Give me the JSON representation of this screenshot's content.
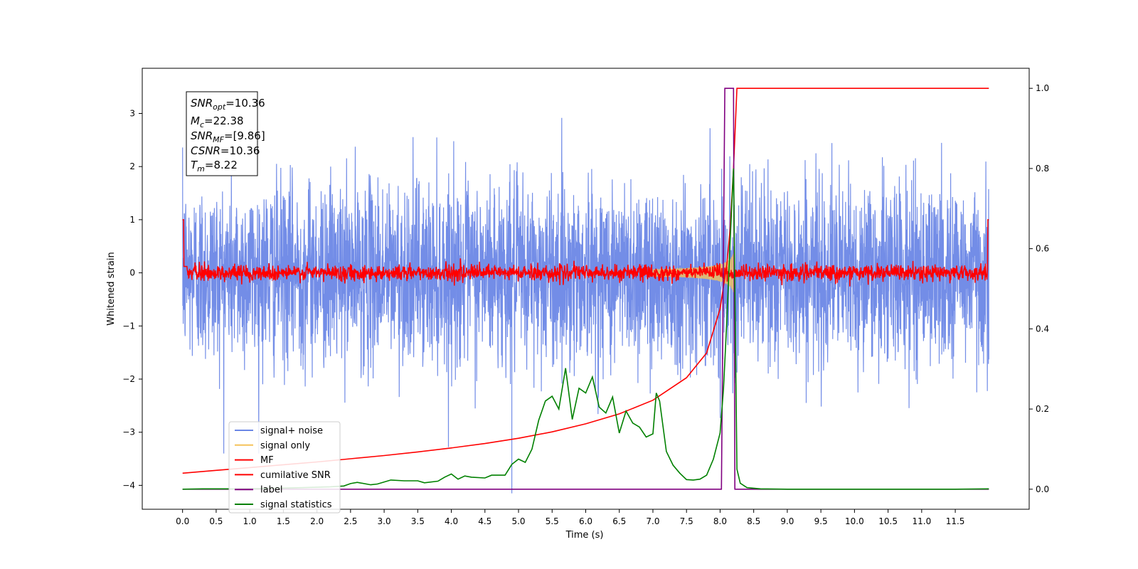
{
  "chart_data": {
    "type": "line",
    "xlabel": "Time (s)",
    "ylabel": "Whitened strain",
    "xlim": [
      -0.6,
      12.6
    ],
    "ylim": [
      -4.45,
      3.85
    ],
    "ylim_right": [
      -0.05,
      1.05
    ],
    "xticks": [
      "0.0",
      "0.5",
      "1.0",
      "1.5",
      "2.0",
      "2.5",
      "3.0",
      "3.5",
      "4.0",
      "4.5",
      "5.0",
      "5.5",
      "6.0",
      "6.5",
      "7.0",
      "7.5",
      "8.0",
      "8.5",
      "9.0",
      "9.5",
      "10.0",
      "10.5",
      "11.0",
      "11.5"
    ],
    "yticks_left": [
      "3",
      "2",
      "1",
      "0",
      "−1",
      "−2",
      "−3",
      "−4"
    ],
    "yticks_right": [
      "1.0",
      "0.8",
      "0.6",
      "0.4",
      "0.2",
      "0.0"
    ],
    "grid": false,
    "legend_position": "lower-left",
    "info_box": {
      "snr_opt": {
        "name": "SNR",
        "sub": "opt",
        "value": "=10.36"
      },
      "mc": {
        "name": "M",
        "sub": "c",
        "value": "=22.38"
      },
      "snr_mf": {
        "name": "SNR",
        "sub": "MF",
        "value": "=[9.86]"
      },
      "csnr": {
        "name": "CSNR",
        "sub": "",
        "value": "=10.36"
      },
      "tm": {
        "name": "T",
        "sub": "m",
        "value": "=8.22"
      }
    },
    "series": [
      {
        "name": "signal+ noise",
        "color": "#6b87e6",
        "axis": "left",
        "description": "white noise, std ~0.85 whitened strain, 0.0-12.0 s, peaks to about ±3.4"
      },
      {
        "name": "signal only",
        "color": "#f5c25a",
        "axis": "left",
        "description": "chirp growing toward merger at 8.22 s, amplitude ~0.45 at peak"
      },
      {
        "name": "MF",
        "color": "#ff0000",
        "axis": "left",
        "description": "matched-filter output, std ~0.08 around 0, spike to 1.0 at 0.0 and 12.0 s"
      },
      {
        "name": "cumilative SNR",
        "color": "#ff0000",
        "axis": "right",
        "x": [
          0.0,
          0.5,
          1.0,
          1.5,
          2.0,
          2.5,
          3.0,
          3.5,
          4.0,
          4.5,
          5.0,
          5.5,
          6.0,
          6.5,
          7.0,
          7.5,
          7.8,
          8.0,
          8.1,
          8.15,
          8.2,
          8.25,
          9.0,
          10.0,
          11.0,
          12.0
        ],
        "y": [
          0.04,
          0.047,
          0.054,
          0.061,
          0.068,
          0.076,
          0.084,
          0.093,
          0.103,
          0.114,
          0.127,
          0.143,
          0.163,
          0.188,
          0.222,
          0.278,
          0.34,
          0.45,
          0.56,
          0.65,
          0.8,
          1.0,
          1.0,
          1.0,
          1.0,
          1.0
        ]
      },
      {
        "name": "label",
        "color": "#800080",
        "axis": "right",
        "x": [
          0.0,
          8.02,
          8.07,
          8.2,
          8.22,
          12.0
        ],
        "y": [
          0.0,
          0.0,
          1.0,
          1.0,
          0.0,
          0.0
        ]
      },
      {
        "name": "signal statistics",
        "color": "#008000",
        "axis": "right",
        "x": [
          0.0,
          0.3,
          0.8,
          1.3,
          1.8,
          2.2,
          2.4,
          2.5,
          2.6,
          2.8,
          2.9,
          3.1,
          3.3,
          3.5,
          3.6,
          3.8,
          3.9,
          4.0,
          4.1,
          4.2,
          4.3,
          4.5,
          4.6,
          4.8,
          4.9,
          5.0,
          5.1,
          5.2,
          5.3,
          5.4,
          5.5,
          5.6,
          5.7,
          5.8,
          5.9,
          6.0,
          6.1,
          6.2,
          6.3,
          6.4,
          6.5,
          6.6,
          6.7,
          6.8,
          6.9,
          7.0,
          7.05,
          7.1,
          7.2,
          7.3,
          7.4,
          7.5,
          7.6,
          7.7,
          7.8,
          7.9,
          8.0,
          8.05,
          8.1,
          8.15,
          8.2,
          8.25,
          8.3,
          8.4,
          8.6,
          9.0,
          10.0,
          11.0,
          11.5,
          12.0
        ],
        "y": [
          0.0,
          0.001,
          0.001,
          0.002,
          0.004,
          0.006,
          0.008,
          0.014,
          0.017,
          0.011,
          0.013,
          0.023,
          0.021,
          0.021,
          0.016,
          0.02,
          0.03,
          0.038,
          0.025,
          0.033,
          0.03,
          0.028,
          0.035,
          0.035,
          0.062,
          0.075,
          0.067,
          0.1,
          0.172,
          0.22,
          0.232,
          0.2,
          0.302,
          0.174,
          0.252,
          0.24,
          0.28,
          0.205,
          0.19,
          0.23,
          0.14,
          0.195,
          0.165,
          0.155,
          0.13,
          0.138,
          0.24,
          0.22,
          0.094,
          0.06,
          0.04,
          0.024,
          0.023,
          0.025,
          0.035,
          0.075,
          0.14,
          0.25,
          0.42,
          0.62,
          0.8,
          0.05,
          0.015,
          0.004,
          0.001,
          0.0,
          0.0,
          0.0,
          0.0,
          0.001
        ]
      }
    ]
  }
}
